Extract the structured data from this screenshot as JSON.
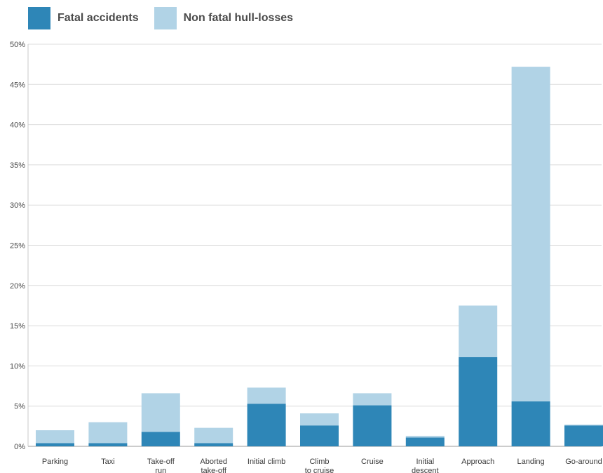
{
  "chart_data": {
    "type": "bar",
    "stacked": true,
    "categories": [
      [
        "Parking"
      ],
      [
        "Taxi"
      ],
      [
        "Take-off",
        "run"
      ],
      [
        "Aborted",
        "take-off"
      ],
      [
        "Initial climb"
      ],
      [
        "Climb",
        "to cruise"
      ],
      [
        "Cruise"
      ],
      [
        "Initial",
        "descent"
      ],
      [
        "Approach"
      ],
      [
        "Landing"
      ],
      [
        "Go-around"
      ]
    ],
    "series": [
      {
        "name": "Fatal accidents",
        "color": "#2e86b7",
        "values": [
          0.4,
          0.4,
          1.8,
          0.4,
          5.3,
          2.6,
          5.1,
          1.1,
          11.1,
          5.6,
          2.6
        ]
      },
      {
        "name": "Non fatal hull-losses",
        "color": "#b1d3e6",
        "values": [
          1.6,
          2.6,
          4.8,
          1.9,
          2.0,
          1.5,
          1.5,
          0.2,
          6.4,
          41.6,
          0.1
        ]
      }
    ],
    "ylim": [
      0,
      50
    ],
    "yticks": [
      "0%",
      "5%",
      "10%",
      "15%",
      "20%",
      "25%",
      "30%",
      "35%",
      "40%",
      "45%",
      "50%"
    ],
    "grid": true,
    "legend": "top-left"
  }
}
